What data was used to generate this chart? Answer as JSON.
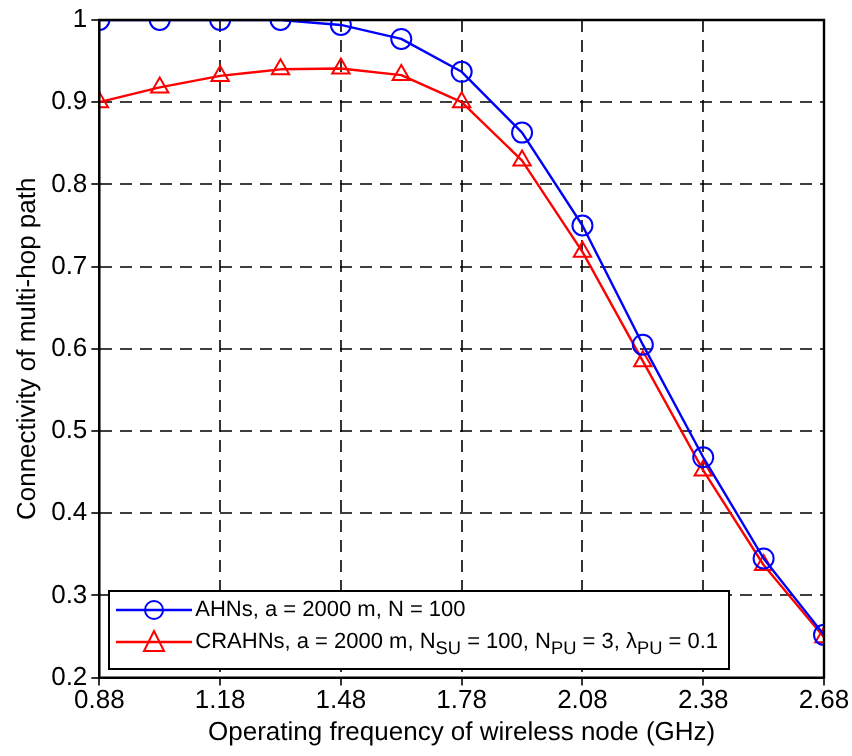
{
  "chart_data": {
    "type": "line",
    "xlabel": "Operating frequency of wireless node (GHz)",
    "ylabel": "Connectivity of multi-hop path",
    "x": [
      0.88,
      1.03,
      1.18,
      1.33,
      1.48,
      1.63,
      1.78,
      1.93,
      2.08,
      2.23,
      2.38,
      2.53,
      2.68
    ],
    "series": [
      {
        "name": "AHNs, a = 2000 m, N = 100",
        "color": "#0000ff",
        "marker": "circle",
        "values": [
          1,
          1,
          1,
          1,
          0.994,
          0.977,
          0.937,
          0.863,
          0.75,
          0.605,
          0.468,
          0.345,
          0.252
        ]
      },
      {
        "name": "CRAHNs, a = 2000 m, N$_{SU}$ = 100, N$_{PU}$ = 3, λ$_{PU}$ = 0.1",
        "color": "#ff0000",
        "marker": "triangle",
        "values": [
          0.9,
          0.918,
          0.932,
          0.94,
          0.941,
          0.933,
          0.9,
          0.829,
          0.718,
          0.585,
          0.452,
          0.337,
          0.249
        ]
      }
    ],
    "xlim": [
      0.88,
      2.68
    ],
    "xticks": [
      0.88,
      1.18,
      1.48,
      1.78,
      2.08,
      2.38,
      2.68
    ],
    "ylim": [
      0.2,
      1
    ],
    "yticks": [
      0.2,
      0.3,
      0.4,
      0.5,
      0.6,
      0.7,
      0.8,
      0.9,
      1
    ],
    "grid": true,
    "legend": "bottom left",
    "line_style": "solid"
  }
}
